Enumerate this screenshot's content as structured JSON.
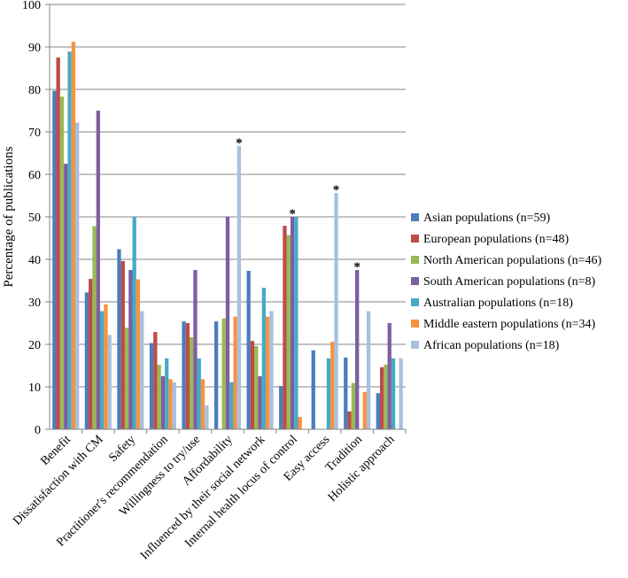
{
  "chart_data": {
    "type": "bar",
    "title": "",
    "xlabel": "",
    "ylabel": "Percentage of publications",
    "ylim": [
      0,
      100
    ],
    "yticks": [
      "0",
      "10",
      "20",
      "30",
      "40",
      "50",
      "60",
      "70",
      "80",
      "90",
      "100"
    ],
    "grid": true,
    "legend_position": "right",
    "categories": [
      "Benefit",
      "Dissatisfaction with CM",
      "Safety",
      "Practitioner's recommendation",
      "Willingness to try/use",
      "Affordability",
      "Influenced by their social network",
      "Internal health locus of control",
      "Easy access",
      "Tradition",
      "Holistic approach"
    ],
    "series": [
      {
        "name": "Asian populations (n=59)",
        "color": "#4a7ebb",
        "values": [
          79.7,
          32.2,
          42.4,
          20.3,
          25.4,
          25.4,
          37.3,
          10.2,
          18.6,
          16.9,
          8.5
        ]
      },
      {
        "name": "European populations (n=48)",
        "color": "#be4b48",
        "values": [
          87.5,
          35.4,
          39.6,
          22.9,
          25.0,
          0,
          20.8,
          47.9,
          0,
          4.2,
          14.6
        ]
      },
      {
        "name": "North American populations (n=46)",
        "color": "#98b954",
        "values": [
          78.3,
          47.8,
          23.9,
          15.2,
          21.7,
          26.1,
          19.6,
          45.7,
          0,
          10.9,
          15.2
        ]
      },
      {
        "name": "South American populations (n=8)",
        "color": "#7d5fa0",
        "values": [
          62.5,
          75.0,
          37.5,
          12.5,
          37.5,
          50.0,
          12.5,
          50.0,
          0,
          37.5,
          25.0
        ]
      },
      {
        "name": "Australian populations (n=18)",
        "color": "#46aac5",
        "values": [
          88.9,
          27.8,
          50.0,
          16.7,
          16.7,
          11.1,
          33.3,
          50.0,
          16.7,
          0,
          16.7
        ]
      },
      {
        "name": "Middle eastern populations (n=34)",
        "color": "#f69240",
        "values": [
          91.2,
          29.4,
          35.3,
          11.8,
          11.8,
          26.5,
          26.5,
          2.9,
          20.6,
          8.8,
          0
        ]
      },
      {
        "name": "African populations (n=18)",
        "color": "#a7c0de",
        "values": [
          72.2,
          22.2,
          27.8,
          11.1,
          5.6,
          66.7,
          27.8,
          0,
          55.6,
          27.8,
          16.7
        ]
      }
    ],
    "annotations": [
      {
        "text": "*",
        "category": "Affordability",
        "series": "African populations (n=18)"
      },
      {
        "text": "*",
        "category": "Internal health locus of control",
        "series": "South American populations (n=8)"
      },
      {
        "text": "*",
        "category": "Easy access",
        "series": "African populations (n=18)"
      },
      {
        "text": "*",
        "category": "Tradition",
        "series": "South American populations (n=8)"
      }
    ]
  }
}
